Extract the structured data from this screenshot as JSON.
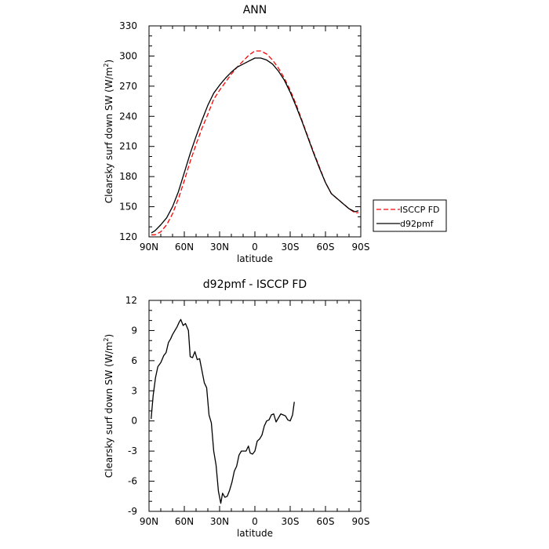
{
  "chart_data": [
    {
      "type": "line",
      "title": "ANN",
      "xlabel": "latitude",
      "ylabel": "Clearsky surf down SW (W/m",
      "ylabel_sup": "2",
      "ylabel_end": ")",
      "xlim": [
        90,
        -90
      ],
      "ylim": [
        120,
        330
      ],
      "x_ticks": [
        90,
        60,
        30,
        0,
        -30,
        -60,
        -90
      ],
      "x_tick_labels": [
        "90N",
        "60N",
        "30N",
        "0",
        "30S",
        "60S",
        "90S"
      ],
      "y_ticks": [
        120,
        150,
        180,
        210,
        240,
        270,
        300,
        330
      ],
      "y_tick_labels": [
        "120",
        "150",
        "180",
        "210",
        "240",
        "270",
        "300",
        "330"
      ],
      "grid": false,
      "legend_position": "outside-right",
      "series": [
        {
          "name": "ISCCP FD",
          "color": "#ff0000",
          "style": "dashed",
          "points": [
            [
              88,
              122
            ],
            [
              85,
              122
            ],
            [
              80,
              125
            ],
            [
              75,
              132
            ],
            [
              70,
              143
            ],
            [
              65,
              158
            ],
            [
              60,
              176
            ],
            [
              55,
              195
            ],
            [
              50,
              212
            ],
            [
              45,
              228
            ],
            [
              40,
              242
            ],
            [
              35,
              257
            ],
            [
              30,
              266
            ],
            [
              25,
              274
            ],
            [
              20,
              282
            ],
            [
              15,
              289
            ],
            [
              10,
              295
            ],
            [
              5,
              301
            ],
            [
              0,
              305
            ],
            [
              -5,
              305
            ],
            [
              -10,
              302
            ],
            [
              -15,
              296
            ],
            [
              -20,
              288
            ],
            [
              -25,
              278
            ],
            [
              -30,
              266
            ],
            [
              -35,
              252
            ],
            [
              -40,
              236
            ],
            [
              -45,
              220
            ],
            [
              -50,
              204
            ],
            [
              -55,
              189
            ],
            [
              -60,
              174
            ],
            [
              -65,
              163
            ],
            [
              -70,
              158
            ],
            [
              -75,
              153
            ],
            [
              -80,
              148
            ],
            [
              -85,
              144
            ],
            [
              -88,
              144
            ]
          ]
        },
        {
          "name": "d92pmf",
          "color": "#000000",
          "style": "solid",
          "points": [
            [
              88,
              124
            ],
            [
              85,
              126
            ],
            [
              80,
              132
            ],
            [
              75,
              139
            ],
            [
              70,
              150
            ],
            [
              65,
              165
            ],
            [
              60,
              184
            ],
            [
              55,
              203
            ],
            [
              50,
              220
            ],
            [
              45,
              236
            ],
            [
              40,
              251
            ],
            [
              35,
              263
            ],
            [
              30,
              271
            ],
            [
              25,
              278
            ],
            [
              20,
              284
            ],
            [
              15,
              289
            ],
            [
              10,
              292
            ],
            [
              5,
              295
            ],
            [
              0,
              298
            ],
            [
              -5,
              298
            ],
            [
              -10,
              296
            ],
            [
              -15,
              292
            ],
            [
              -20,
              285
            ],
            [
              -25,
              276
            ],
            [
              -30,
              264
            ],
            [
              -35,
              250
            ],
            [
              -40,
              235
            ],
            [
              -45,
              219
            ],
            [
              -50,
              203
            ],
            [
              -55,
              188
            ],
            [
              -60,
              174
            ],
            [
              -65,
              163
            ],
            [
              -70,
              158
            ],
            [
              -75,
              153
            ],
            [
              -80,
              148
            ],
            [
              -85,
              145
            ],
            [
              -88,
              146
            ]
          ]
        }
      ]
    },
    {
      "type": "line",
      "title": "d92pmf - ISCCP FD",
      "xlabel": "latitude",
      "ylabel": "Clearsky surf down SW (W/m",
      "ylabel_sup": "2",
      "ylabel_end": ")",
      "xlim": [
        90,
        -90
      ],
      "ylim": [
        -9,
        12
      ],
      "x_ticks": [
        90,
        60,
        30,
        0,
        -30,
        -60,
        -90
      ],
      "x_tick_labels": [
        "90N",
        "60N",
        "30N",
        "0",
        "30S",
        "60S",
        "90S"
      ],
      "y_ticks": [
        -9,
        -6,
        -3,
        0,
        3,
        6,
        9,
        12
      ],
      "y_tick_labels": [
        "-9",
        "-6",
        "-3",
        "0",
        "3",
        "6",
        "9",
        "12"
      ],
      "grid": false,
      "series": [
        {
          "color": "#000000",
          "style": "solid",
          "points": [
            [
              88.2,
              0.2
            ],
            [
              86.5,
              2.5
            ],
            [
              84.5,
              4.3
            ],
            [
              82.5,
              5.4
            ],
            [
              80,
              5.8
            ],
            [
              77.5,
              6.5
            ],
            [
              75.5,
              6.8
            ],
            [
              73.5,
              7.8
            ],
            [
              71.5,
              8.2
            ],
            [
              70,
              8.6
            ],
            [
              68,
              9.0
            ],
            [
              66,
              9.4
            ],
            [
              64.5,
              9.8
            ],
            [
              63,
              10.1
            ],
            [
              61,
              9.5
            ],
            [
              59,
              9.7
            ],
            [
              56.5,
              9.0
            ],
            [
              55,
              6.4
            ],
            [
              53,
              6.3
            ],
            [
              51,
              6.9
            ],
            [
              49,
              6.1
            ],
            [
              47,
              6.2
            ],
            [
              45,
              5.0
            ],
            [
              43,
              3.8
            ],
            [
              41,
              3.3
            ],
            [
              39,
              0.6
            ],
            [
              37,
              -0.2
            ],
            [
              35,
              -3.0
            ],
            [
              33,
              -4.4
            ],
            [
              31,
              -7.0
            ],
            [
              29,
              -8.2
            ],
            [
              27.5,
              -7.2
            ],
            [
              25.5,
              -7.6
            ],
            [
              23.5,
              -7.5
            ],
            [
              21.5,
              -6.9
            ],
            [
              19.5,
              -6.1
            ],
            [
              17.5,
              -5.0
            ],
            [
              15.5,
              -4.5
            ],
            [
              13.5,
              -3.4
            ],
            [
              11.5,
              -3.0
            ],
            [
              9.5,
              -3.0
            ],
            [
              7.5,
              -3.0
            ],
            [
              5.5,
              -2.5
            ],
            [
              4,
              -3.2
            ],
            [
              2,
              -3.3
            ],
            [
              0,
              -3.0
            ],
            [
              -2,
              -2.0
            ],
            [
              -4,
              -1.8
            ],
            [
              -6,
              -1.4
            ],
            [
              -8,
              -0.5
            ],
            [
              -10,
              0.0
            ],
            [
              -12,
              0.1
            ],
            [
              -14,
              0.6
            ],
            [
              -16,
              0.7
            ],
            [
              -18,
              -0.1
            ],
            [
              -20,
              0.3
            ],
            [
              -22,
              0.7
            ],
            [
              -24,
              0.6
            ],
            [
              -26,
              0.5
            ],
            [
              -28,
              0.1
            ],
            [
              -30,
              0.0
            ],
            [
              -32,
              0.6
            ],
            [
              -33.5,
              1.9
            ]
          ]
        }
      ]
    }
  ]
}
